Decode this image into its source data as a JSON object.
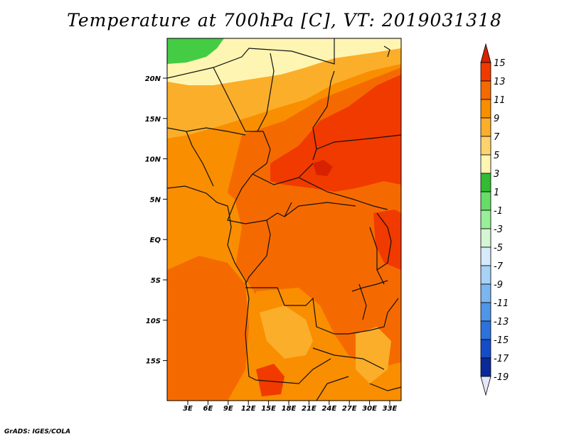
{
  "title": "Temperature at 700hPa [C], VT: 2019031318",
  "credit": "GrADS: IGES/COLA",
  "lat_labels": [
    "20N",
    "15N",
    "10N",
    "5N",
    "EQ",
    "5S",
    "10S",
    "15S"
  ],
  "lon_labels": [
    "3E",
    "6E",
    "9E",
    "12E",
    "15E",
    "18E",
    "21E",
    "24E",
    "27E",
    "30E",
    "33E"
  ],
  "colorbar": {
    "labels": [
      "15",
      "13",
      "11",
      "9",
      "7",
      "5",
      "3",
      "1",
      "-1",
      "-3",
      "-5",
      "-7",
      "-9",
      "-11",
      "-13",
      "-15",
      "-17",
      "-19"
    ],
    "colors": [
      "#d72100",
      "#f03a00",
      "#f56a00",
      "#f98e00",
      "#fbae2a",
      "#fcd46e",
      "#fef5b2",
      "#33bb33",
      "#66dd66",
      "#99ee99",
      "#d5f5d5",
      "#d6eafb",
      "#a8d2f6",
      "#7bb6f0",
      "#4f95e8",
      "#2b72dc",
      "#164cc7",
      "#0a2a9a",
      "#0a0a5a",
      "#e6e6fa"
    ]
  },
  "colors": {
    "cool_top": "#44cc44",
    "pale": "#fef5b2",
    "light": "#fcd46e",
    "mid_light": "#fbae2a",
    "mid": "#f98e00",
    "warm": "#f56a00",
    "hot": "#f03a00",
    "hottest": "#d72100"
  }
}
